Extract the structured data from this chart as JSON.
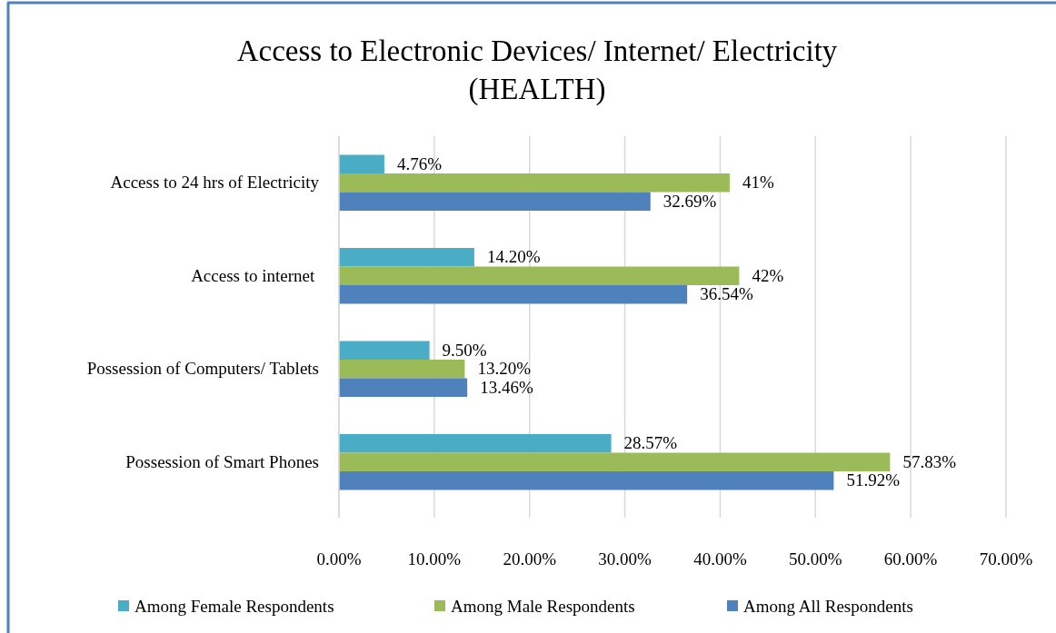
{
  "chart_data": {
    "type": "bar",
    "orientation": "horizontal",
    "title": "Access to Electronic Devices/ Internet/ Electricity\n(HEALTH)",
    "categories": [
      "Access to 24 hrs of Electricity",
      "Access to internet ",
      "Possession of Computers/ Tablets",
      "Possession of Smart Phones"
    ],
    "series": [
      {
        "name": "Among Female Respondents",
        "color": "#4bacc6",
        "values": [
          4.76,
          14.2,
          9.5,
          28.57
        ],
        "value_labels": [
          "4.76%",
          "14.20%",
          "9.50%",
          "28.57%"
        ]
      },
      {
        "name": "Among Male Respondents",
        "color": "#9bbb59",
        "values": [
          41,
          42,
          13.2,
          57.83
        ],
        "value_labels": [
          "41%",
          "42%",
          "13.20%",
          "57.83%"
        ]
      },
      {
        "name": "Among All Respondents",
        "color": "#4f81bd",
        "values": [
          32.69,
          36.54,
          13.46,
          51.92
        ],
        "value_labels": [
          "32.69%",
          "36.54%",
          "13.46%",
          "51.92%"
        ]
      }
    ],
    "xlim": [
      0,
      70
    ],
    "xticks": [
      {
        "value": 0,
        "label": "0.00%"
      },
      {
        "value": 10,
        "label": "10.00%"
      },
      {
        "value": 20,
        "label": "20.00%"
      },
      {
        "value": 30,
        "label": "30.00%"
      },
      {
        "value": 40,
        "label": "40.00%"
      },
      {
        "value": 50,
        "label": "50.00%"
      },
      {
        "value": 60,
        "label": "60.00%"
      },
      {
        "value": 70,
        "label": "70.00%"
      }
    ],
    "grid": "x",
    "legend": "bottom"
  }
}
